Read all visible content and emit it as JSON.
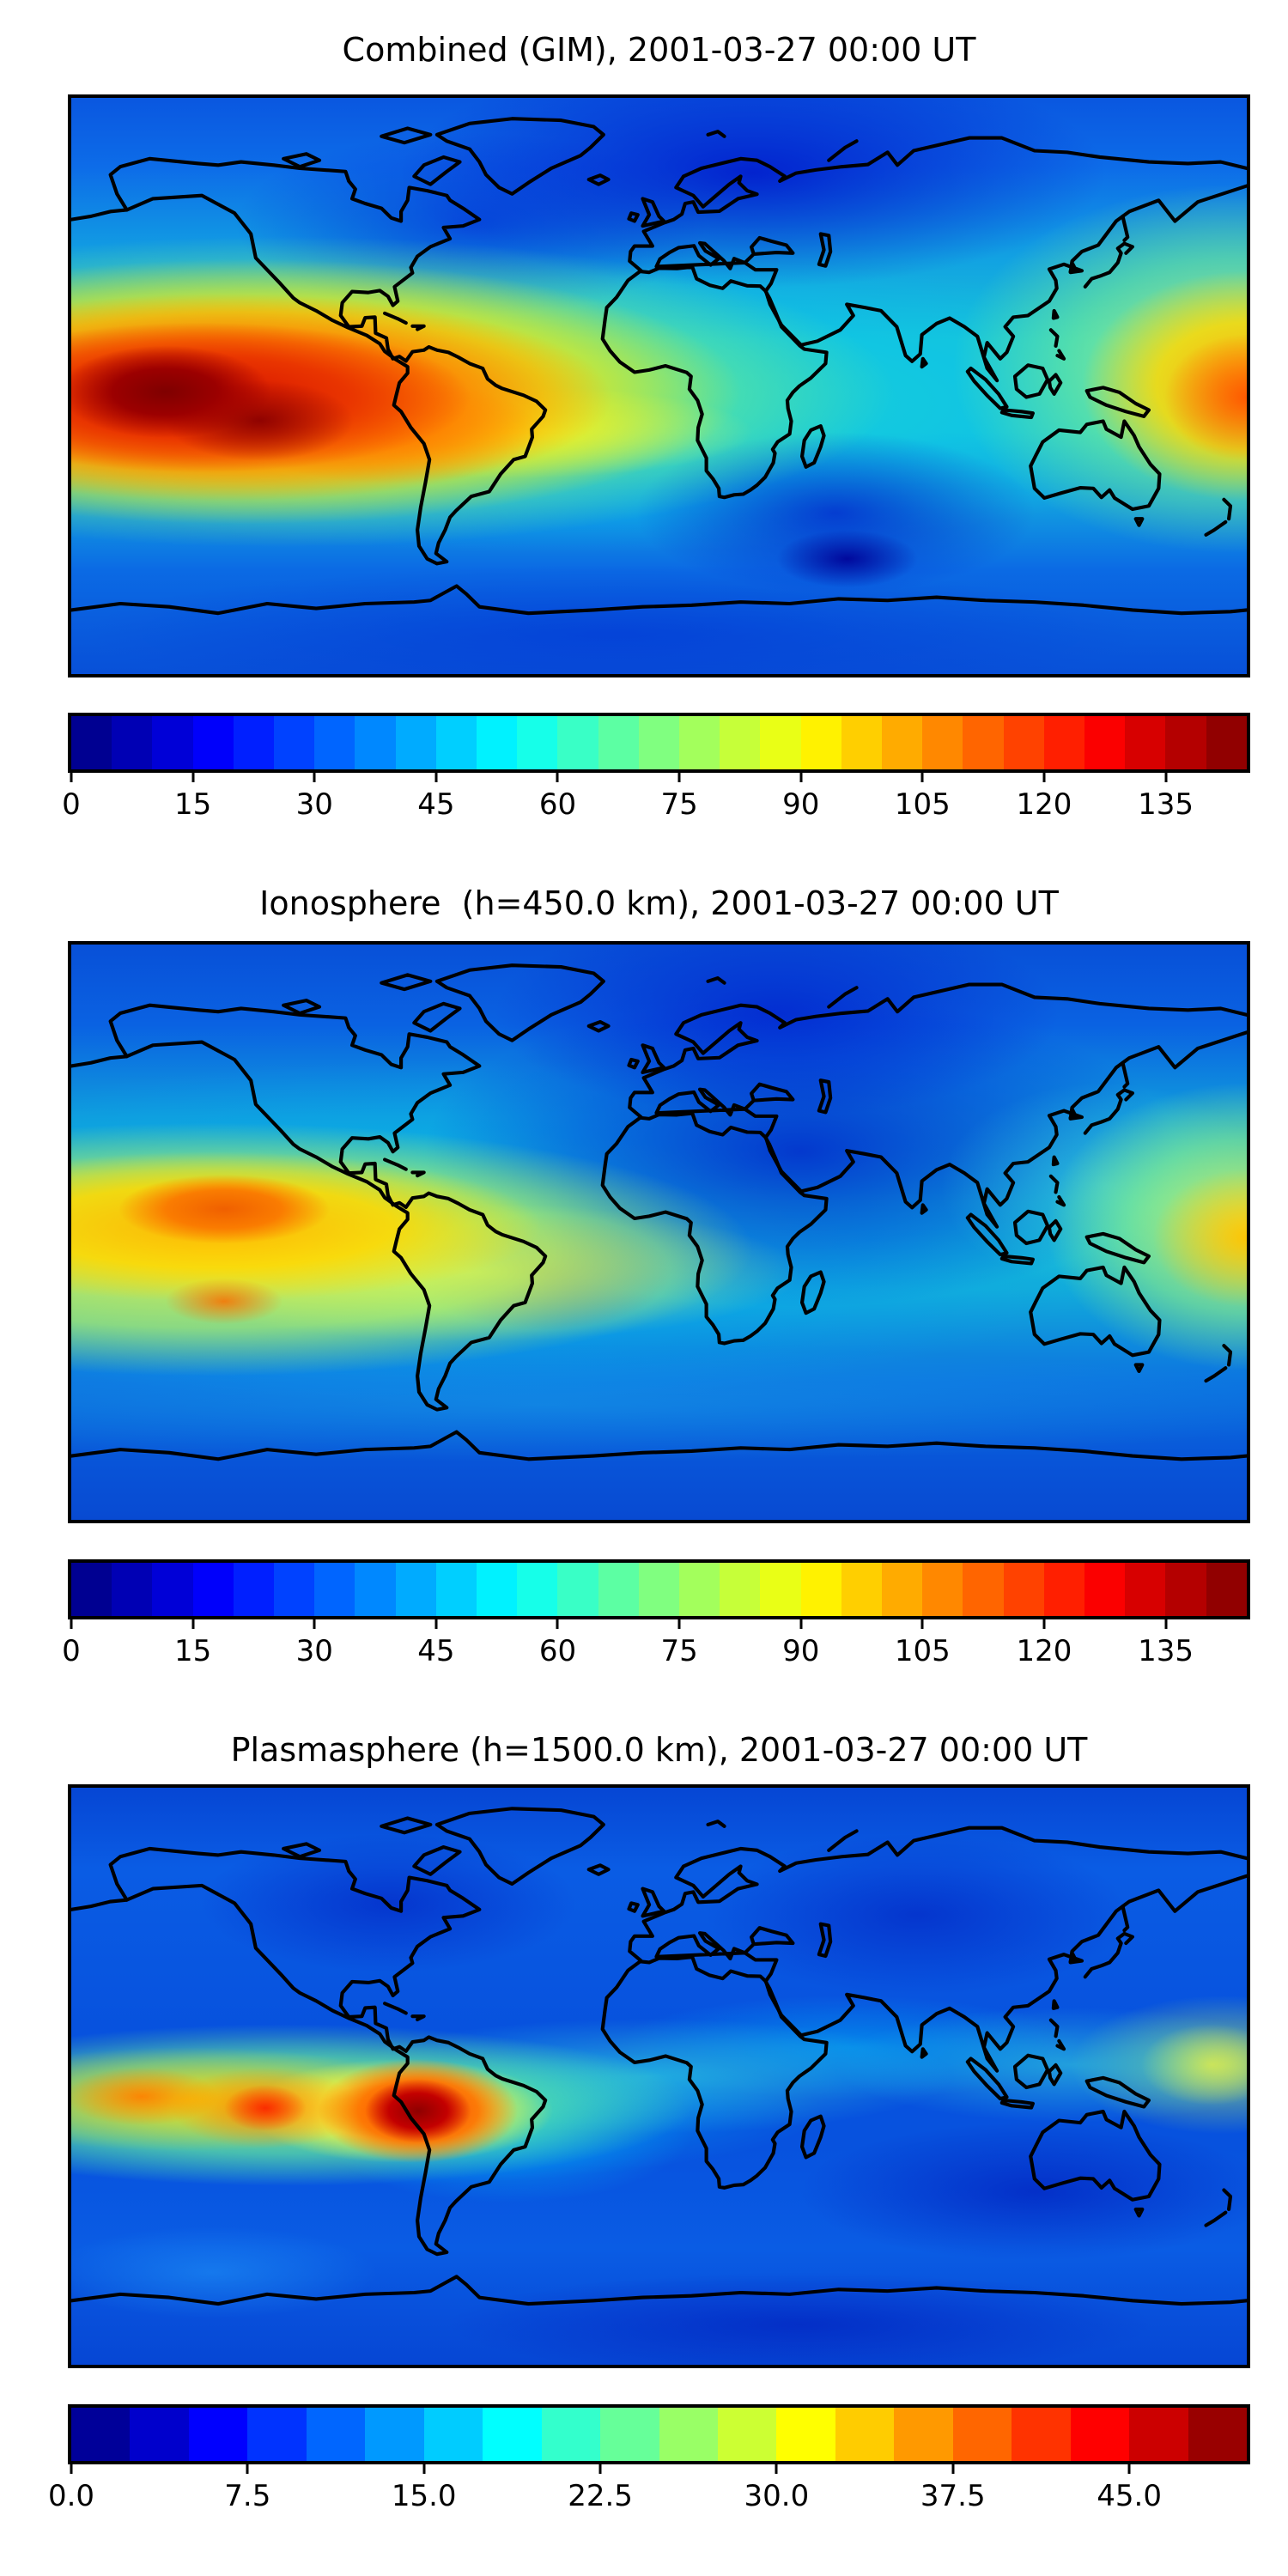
{
  "figure": {
    "panels": [
      {
        "id": "combined",
        "title": "Combined (GIM), 2001-03-27 00:00 UT",
        "colorbar": {
          "vmin": 0,
          "vmax": 145,
          "segments": 29,
          "ticks": [
            0,
            15,
            30,
            45,
            60,
            75,
            90,
            105,
            120,
            135
          ],
          "tick_labels": [
            "0",
            "15",
            "30",
            "45",
            "60",
            "75",
            "90",
            "105",
            "120",
            "135"
          ]
        }
      },
      {
        "id": "ionosphere",
        "title": "Ionosphere  (h=450.0 km), 2001-03-27 00:00 UT",
        "colorbar": {
          "vmin": 0,
          "vmax": 145,
          "segments": 29,
          "ticks": [
            0,
            15,
            30,
            45,
            60,
            75,
            90,
            105,
            120,
            135
          ],
          "tick_labels": [
            "0",
            "15",
            "30",
            "45",
            "60",
            "75",
            "90",
            "105",
            "120",
            "135"
          ]
        }
      },
      {
        "id": "plasmasphere",
        "title": "Plasmasphere (h=1500.0 km), 2001-03-27 00:00 UT",
        "colorbar": {
          "vmin": 0,
          "vmax": 50,
          "segments": 20,
          "ticks": [
            0,
            7.5,
            15,
            22.5,
            30,
            37.5,
            45
          ],
          "tick_labels": [
            "0.0",
            "7.5",
            "15.0",
            "22.5",
            "30.0",
            "37.5",
            "45.0"
          ]
        }
      }
    ]
  },
  "chart_data": [
    {
      "type": "heatmap",
      "title": "Combined (GIM), 2001-03-27 00:00 UT",
      "projection": "equirectangular world map, lon -180..180 (left-right), lat 90..-90 (top-bottom), coastlines overlaid",
      "colormap": "jet",
      "value_range": [
        0,
        145
      ],
      "colorbar_ticks": [
        0,
        15,
        30,
        45,
        60,
        75,
        90,
        105,
        120,
        135
      ],
      "legend_position": "horizontal colorbar below map",
      "features": {
        "maxima": [
          {
            "lon": -135,
            "lat": 2,
            "value": 140
          },
          {
            "lon": -108,
            "lat": -5,
            "value": 138
          },
          {
            "lon": -78,
            "lat": -6,
            "value": 110
          },
          {
            "lon": 172,
            "lat": 3,
            "value": 115
          }
        ],
        "minima": [
          {
            "lon": 80,
            "lat": 62,
            "value": 8
          },
          {
            "lon": 75,
            "lat": -28,
            "value": 5
          },
          {
            "lon": -45,
            "lat": 52,
            "value": 15
          }
        ],
        "description": "Large dark-red equatorial anomaly over the eastern Pacific spreading yellow-green across the Atlantic; secondary orange enhancement at the western-Pacific edge near Japan; deep blue minima over Siberia, the central Indian Ocean and high southern latitudes."
      }
    },
    {
      "type": "heatmap",
      "title": "Ionosphere  (h=450.0 km), 2001-03-27 00:00 UT",
      "projection": "equirectangular world map, lon -180..180 (left-right), lat 90..-90 (top-bottom), coastlines overlaid",
      "colormap": "jet",
      "value_range": [
        0,
        145
      ],
      "colorbar_ticks": [
        0,
        15,
        30,
        45,
        60,
        75,
        90,
        105,
        120,
        135
      ],
      "legend_position": "horizontal colorbar below map",
      "features": {
        "maxima": [
          {
            "lon": -150,
            "lat": 8,
            "value": 112
          },
          {
            "lon": -145,
            "lat": -18,
            "value": 100
          },
          {
            "lon": 170,
            "lat": -3,
            "value": 100
          }
        ],
        "minima": [
          {
            "lon": 55,
            "lat": 25,
            "value": 8
          },
          {
            "lon": -38,
            "lat": -8,
            "value": 15
          },
          {
            "lon": 75,
            "lat": 62,
            "value": 10
          }
        ],
        "description": "Broad yellow day-side band over the central/eastern Pacific with an orange core northeast of Hawaii; dark blue night-side minimum over Africa, Arabia, India and central Asia; moderate blue at high latitudes."
      }
    },
    {
      "type": "heatmap",
      "title": "Plasmasphere (h=1500.0 km), 2001-03-27 00:00 UT",
      "projection": "equirectangular world map, lon -180..180 (left-right), lat 90..-90 (top-bottom), coastlines overlaid",
      "colormap": "jet",
      "value_range": [
        0,
        50
      ],
      "colorbar_ticks": [
        0,
        7.5,
        15,
        22.5,
        30,
        37.5,
        45
      ],
      "legend_position": "horizontal colorbar below map",
      "features": {
        "maxima": [
          {
            "lon": -74,
            "lat": -11,
            "value": 48
          },
          {
            "lon": -122,
            "lat": -10,
            "value": 42
          },
          {
            "lon": -158,
            "lat": -7,
            "value": 38
          },
          {
            "lon": 170,
            "lat": 4,
            "value": 33
          }
        ],
        "minima": [
          {
            "lon": -80,
            "lat": 55,
            "value": 7
          },
          {
            "lon": 80,
            "lat": 50,
            "value": 7
          },
          {
            "lon": 115,
            "lat": -38,
            "value": 6
          }
        ],
        "description": "Mostly uniform blue with a wavy cyan-green belt along the magnetic equator; chain of red cores peaking dark-red over Peru/western South America; yellow enhancement at the western-Pacific edge; darker navy patches at high latitudes and south of Australia."
      }
    }
  ]
}
